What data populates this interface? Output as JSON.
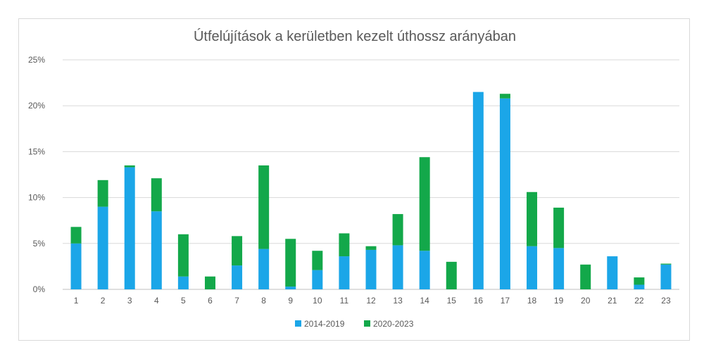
{
  "chart_data": {
    "type": "bar",
    "stacked": true,
    "title": "Útfelújítások a kerületben kezelt úthossz arányában",
    "xlabel": "",
    "ylabel": "",
    "categories": [
      "1",
      "2",
      "3",
      "4",
      "5",
      "6",
      "7",
      "8",
      "9",
      "10",
      "11",
      "12",
      "13",
      "14",
      "15",
      "16",
      "17",
      "18",
      "19",
      "20",
      "21",
      "22",
      "23"
    ],
    "ylim": [
      0,
      25
    ],
    "y_unit": "%",
    "yticks": [
      0,
      5,
      10,
      15,
      20,
      25
    ],
    "ytick_labels": [
      "0%",
      "5%",
      "10%",
      "15%",
      "20%",
      "25%"
    ],
    "grid": true,
    "legend_position": "bottom",
    "series": [
      {
        "name": "2014-2019",
        "color": "#1BA6E8",
        "values": [
          5.0,
          9.0,
          13.3,
          8.5,
          1.4,
          0.0,
          2.6,
          4.4,
          0.3,
          2.1,
          3.6,
          4.3,
          4.8,
          4.2,
          0.0,
          21.5,
          20.8,
          4.7,
          4.5,
          0.0,
          3.6,
          0.5,
          2.7
        ]
      },
      {
        "name": "2020-2023",
        "color": "#13A84A",
        "values": [
          1.8,
          2.9,
          0.2,
          3.6,
          4.6,
          1.4,
          3.2,
          9.1,
          5.2,
          2.1,
          2.5,
          0.4,
          3.4,
          10.2,
          3.0,
          0.0,
          0.5,
          5.9,
          4.4,
          2.7,
          0.0,
          0.8,
          0.1
        ]
      }
    ]
  }
}
